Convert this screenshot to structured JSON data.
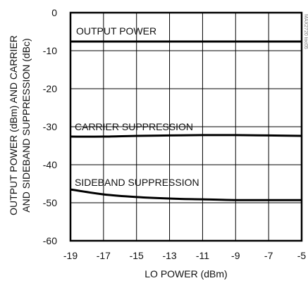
{
  "chart_data": {
    "type": "line",
    "xlabel": "LO POWER (dBm)",
    "ylabel_line1": "OUTPUT POWER (dBm) AND CARRIER",
    "ylabel_line2": "AND SIDEBAND SUPPRESSION (dBc)",
    "xlim": [
      -19,
      -5
    ],
    "ylim": [
      -60,
      0
    ],
    "x_ticks": [
      -19,
      -17,
      -15,
      -13,
      -11,
      -9,
      -7,
      -5
    ],
    "x_tick_labels": [
      "-19",
      "-17",
      "-15",
      "-13",
      "-11",
      "-9",
      "-7",
      "-5"
    ],
    "y_ticks": [
      0,
      -10,
      -20,
      -30,
      -40,
      -50,
      -60
    ],
    "y_tick_labels": [
      "0",
      "-10",
      "-20",
      "-30",
      "-40",
      "-50",
      "-60"
    ],
    "grid": true,
    "watermark": "MAX2720 toc05",
    "series": [
      {
        "name": "OUTPUT POWER",
        "x": [
          -19,
          -17,
          -15,
          -13,
          -11,
          -9,
          -7,
          -5
        ],
        "y": [
          -7.6,
          -7.6,
          -7.6,
          -7.6,
          -7.6,
          -7.6,
          -7.6,
          -7.6
        ],
        "color": "#000000"
      },
      {
        "name": "CARRIER SUPPRESSION",
        "x": [
          -19,
          -17,
          -15,
          -13,
          -11,
          -9,
          -7,
          -5
        ],
        "y": [
          -32.6,
          -32.6,
          -32.4,
          -32.3,
          -32.2,
          -32.2,
          -32.3,
          -32.4
        ],
        "color": "#000000"
      },
      {
        "name": "SIDEBAND SUPPRESSION",
        "x": [
          -19,
          -17,
          -15,
          -13,
          -11,
          -9,
          -7,
          -5
        ],
        "y": [
          -46.5,
          -47.8,
          -48.5,
          -48.9,
          -49.1,
          -49.3,
          -49.3,
          -49.3
        ],
        "color": "#000000"
      }
    ]
  }
}
